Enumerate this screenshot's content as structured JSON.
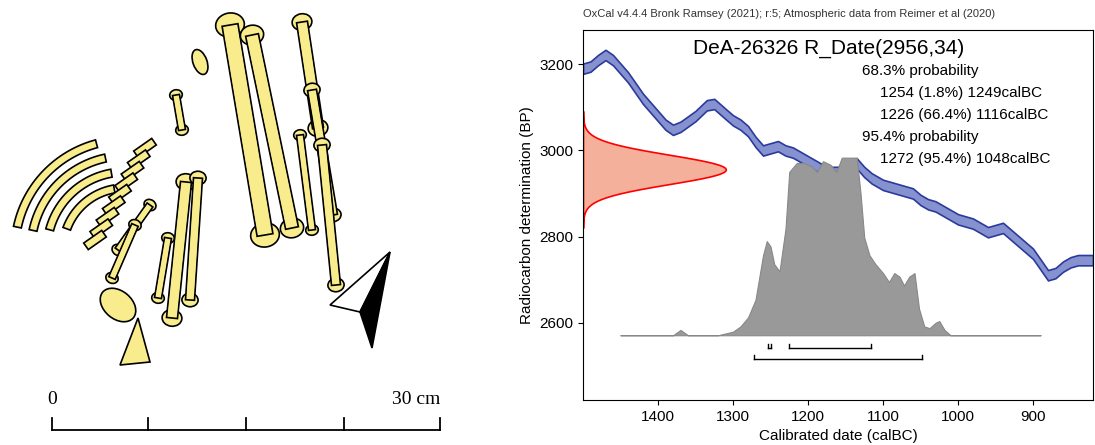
{
  "chart_data": {
    "type": "area",
    "header": "OxCal v4.4.4 Bronk Ramsey (2021); r:5; Atmospheric data from Reimer et al (2020)",
    "title": "DeA-26326 R_Date(2956,34)",
    "x_label": "Calibrated date (calBC)",
    "y_label": "Radiocarbon determination (BP)",
    "xlim": [
      1500,
      820
    ],
    "xticks": [
      1400,
      1300,
      1200,
      1100,
      1000,
      900
    ],
    "ylim": [
      2420,
      3280
    ],
    "yticks": [
      2600,
      2800,
      3000,
      3200
    ],
    "r_date": {
      "mean": 2956,
      "sd": 34,
      "color": "#f4b09a"
    },
    "calibration_curve": {
      "color": "#8592cf",
      "x": [
        1500,
        1490,
        1480,
        1470,
        1460,
        1440,
        1420,
        1400,
        1390,
        1380,
        1370,
        1350,
        1335,
        1325,
        1310,
        1300,
        1290,
        1280,
        1270,
        1260,
        1250,
        1240,
        1230,
        1220,
        1210,
        1200,
        1190,
        1180,
        1170,
        1160,
        1150,
        1140,
        1135,
        1125,
        1115,
        1100,
        1090,
        1080,
        1070,
        1060,
        1050,
        1040,
        1030,
        1020,
        1010,
        1000,
        990,
        980,
        970,
        960,
        950,
        940,
        930,
        920,
        910,
        900,
        890,
        880,
        870,
        860,
        850,
        840,
        830,
        820
      ],
      "bp": [
        3190,
        3195,
        3210,
        3222,
        3210,
        3170,
        3120,
        3080,
        3060,
        3048,
        3055,
        3080,
        3105,
        3108,
        3085,
        3070,
        3060,
        3045,
        3020,
        3000,
        3005,
        3010,
        3000,
        2995,
        2985,
        2975,
        2965,
        2955,
        2950,
        2950,
        2958,
        2968,
        2970,
        2950,
        2935,
        2920,
        2915,
        2910,
        2905,
        2900,
        2885,
        2875,
        2870,
        2860,
        2850,
        2840,
        2835,
        2830,
        2820,
        2810,
        2815,
        2820,
        2805,
        2790,
        2775,
        2760,
        2735,
        2710,
        2715,
        2730,
        2740,
        2745,
        2745,
        2745
      ],
      "sigma": 12
    },
    "posterior": {
      "color": "#999999",
      "x": [
        1450,
        1380,
        1370,
        1360,
        1320,
        1300,
        1290,
        1280,
        1270,
        1260,
        1255,
        1250,
        1245,
        1238,
        1230,
        1225,
        1215,
        1205,
        1195,
        1188,
        1180,
        1170,
        1162,
        1155,
        1145,
        1135,
        1130,
        1125,
        1118,
        1110,
        1100,
        1092,
        1085,
        1078,
        1072,
        1065,
        1058,
        1052,
        1045,
        1038,
        1030,
        1025,
        1018,
        1010,
        890
      ],
      "density": [
        0,
        0,
        0.03,
        0,
        0,
        0.02,
        0.05,
        0.1,
        0.2,
        0.45,
        0.53,
        0.5,
        0.4,
        0.36,
        0.6,
        0.92,
        0.97,
        0.97,
        0.95,
        0.92,
        0.98,
        0.96,
        0.92,
        1.0,
        1.0,
        1.0,
        0.8,
        0.55,
        0.45,
        0.4,
        0.35,
        0.3,
        0.35,
        0.33,
        0.28,
        0.33,
        0.35,
        0.15,
        0.05,
        0.04,
        0.07,
        0.08,
        0.03,
        0,
        0
      ]
    },
    "ranges": [
      {
        "heading": "68.3% probability",
        "items": [
          {
            "from": 1254,
            "to": 1249,
            "label": "1254 (1.8%) 1249calBC"
          },
          {
            "from": 1226,
            "to": 1116,
            "label": "1226 (66.4%) 1116calBC"
          }
        ]
      },
      {
        "heading": "95.4% probability",
        "items": [
          {
            "from": 1272,
            "to": 1048,
            "label": "1272 (95.4%) 1048calBC"
          }
        ]
      }
    ]
  },
  "scale_bar": {
    "labels": [
      "0",
      "30 cm"
    ]
  }
}
